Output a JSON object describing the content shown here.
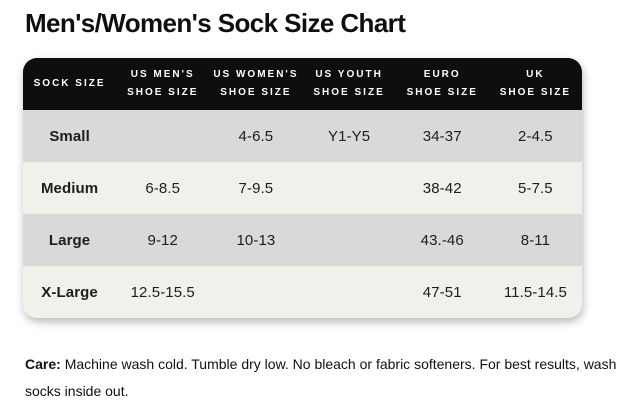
{
  "page": {
    "title": "Men's/Women's Sock Size Chart"
  },
  "care": {
    "label": "Care:",
    "text": "Machine wash cold. Tumble dry low. No bleach or fabric softeners. For best results, wash socks inside out."
  },
  "colors": {
    "header_bg": "#0e0e0e",
    "header_text": "#ffffff",
    "row_gray": "#d9d9d9",
    "row_cream": "#f2f0ea",
    "body_text": "#1d1d1d"
  },
  "chart_data": {
    "type": "table",
    "title": "Men's/Women's Sock Size Chart",
    "columns": [
      "Sock Size",
      "US Men's\nShoe Size",
      "US Women's\nShoe Size",
      "US Youth\nShoe Size",
      "Euro\nShoe Size",
      "UK\nShoe Size"
    ],
    "rows": [
      {
        "size": "Small",
        "values": [
          "",
          "4-6.5",
          "Y1-Y5",
          "34-37",
          "2-4.5"
        ]
      },
      {
        "size": "Medium",
        "values": [
          "6-8.5",
          "7-9.5",
          "",
          "38-42",
          "5-7.5"
        ]
      },
      {
        "size": "Large",
        "values": [
          "9-12",
          "10-13",
          "",
          "43.-46",
          "8-11"
        ]
      },
      {
        "size": "X-Large",
        "values": [
          "12.5-15.5",
          "",
          "",
          "47-51",
          "11.5-14.5"
        ]
      }
    ]
  }
}
